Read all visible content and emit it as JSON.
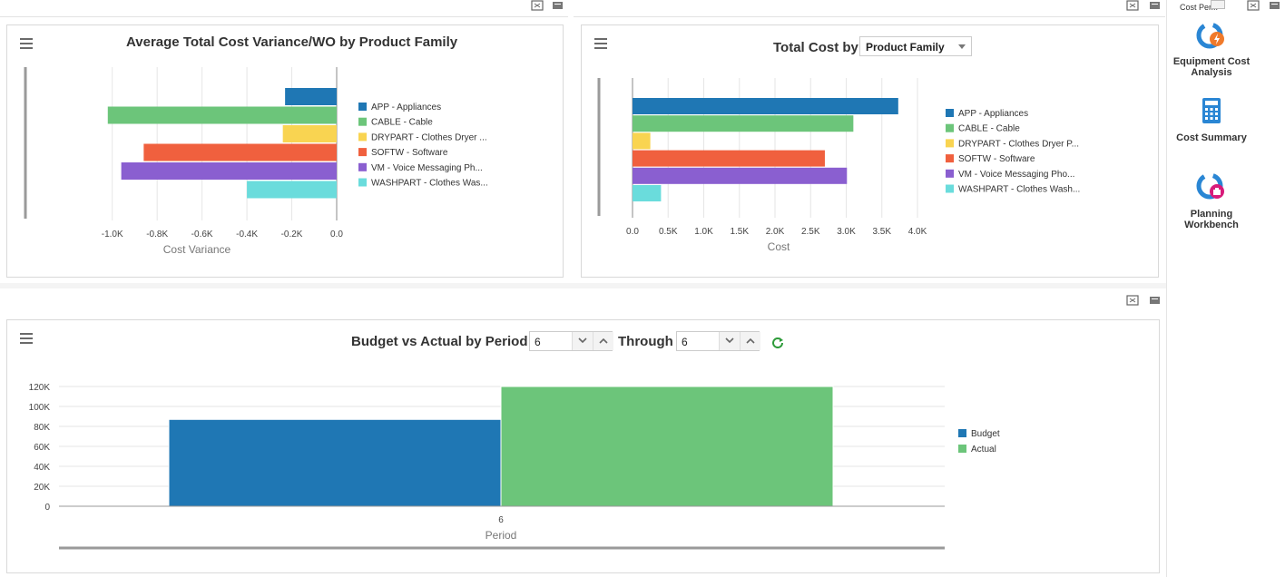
{
  "panel1": {
    "title": "Average Total Cost Variance/WO by Product Family",
    "chart_data": {
      "type": "bar",
      "orientation": "horizontal",
      "categories": [
        "APP - Appliances",
        "CABLE - Cable",
        "DRYPART - Clothes Dryer ...",
        "SOFTW - Software",
        "VM - Voice Messaging Ph...",
        "WASHPART - Clothes Was..."
      ],
      "values": [
        -230,
        -1020,
        -240,
        -860,
        -960,
        -400
      ],
      "colors": [
        "#1f77b4",
        "#6cc57a",
        "#f9d451",
        "#f0603e",
        "#8a5fd0",
        "#6adcdc"
      ],
      "xlabel": "Cost Variance",
      "ticks": [
        "-1.0K",
        "-0.8K",
        "-0.6K",
        "-0.4K",
        "-0.2K",
        "0.0"
      ],
      "tick_values": [
        -1000,
        -800,
        -600,
        -400,
        -200,
        0
      ],
      "xlim": [
        -1100,
        0
      ],
      "legend": "right"
    }
  },
  "panel2": {
    "title": "Total Cost by",
    "select_value": "Product Family",
    "chart_data": {
      "type": "bar",
      "orientation": "horizontal",
      "categories": [
        "APP - Appliances",
        "CABLE - Cable",
        "DRYPART - Clothes Dryer P...",
        "SOFTW - Software",
        "VM - Voice Messaging Pho...",
        "WASHPART - Clothes Wash..."
      ],
      "values": [
        3730,
        3100,
        250,
        2700,
        3010,
        400
      ],
      "colors": [
        "#1f77b4",
        "#6cc57a",
        "#f9d451",
        "#f0603e",
        "#8a5fd0",
        "#6adcdc"
      ],
      "xlabel": "Cost",
      "ticks": [
        "0.0",
        "0.5K",
        "1.0K",
        "1.5K",
        "2.0K",
        "2.5K",
        "3.0K",
        "3.5K",
        "4.0K"
      ],
      "tick_values": [
        0,
        500,
        1000,
        1500,
        2000,
        2500,
        3000,
        3500,
        4000
      ],
      "xlim": [
        0,
        4000
      ],
      "legend": "right"
    }
  },
  "panel3": {
    "title": "Budget vs Actual by Period",
    "from_value": "6",
    "through_label": "Through",
    "through_value": "6",
    "chart_data": {
      "type": "bar",
      "categories": [
        "6"
      ],
      "series": [
        {
          "name": "Budget",
          "values": [
            87000
          ],
          "color": "#1f77b4"
        },
        {
          "name": "Actual",
          "values": [
            120000
          ],
          "color": "#6cc57a"
        }
      ],
      "xlabel": "Period",
      "ylabel": "",
      "ticks": [
        "0",
        "20K",
        "40K",
        "60K",
        "80K",
        "100K",
        "120K"
      ],
      "tick_values": [
        0,
        20000,
        40000,
        60000,
        80000,
        100000,
        120000
      ],
      "ylim": [
        0,
        120000
      ],
      "legend": "right"
    }
  },
  "sidebar": {
    "header": "Cost Per...",
    "items": [
      {
        "label_1": "Equipment Cost",
        "label_2": "Analysis"
      },
      {
        "label_1": "Cost Summary",
        "label_2": ""
      },
      {
        "label_1": "Planning",
        "label_2": "Workbench"
      }
    ]
  }
}
